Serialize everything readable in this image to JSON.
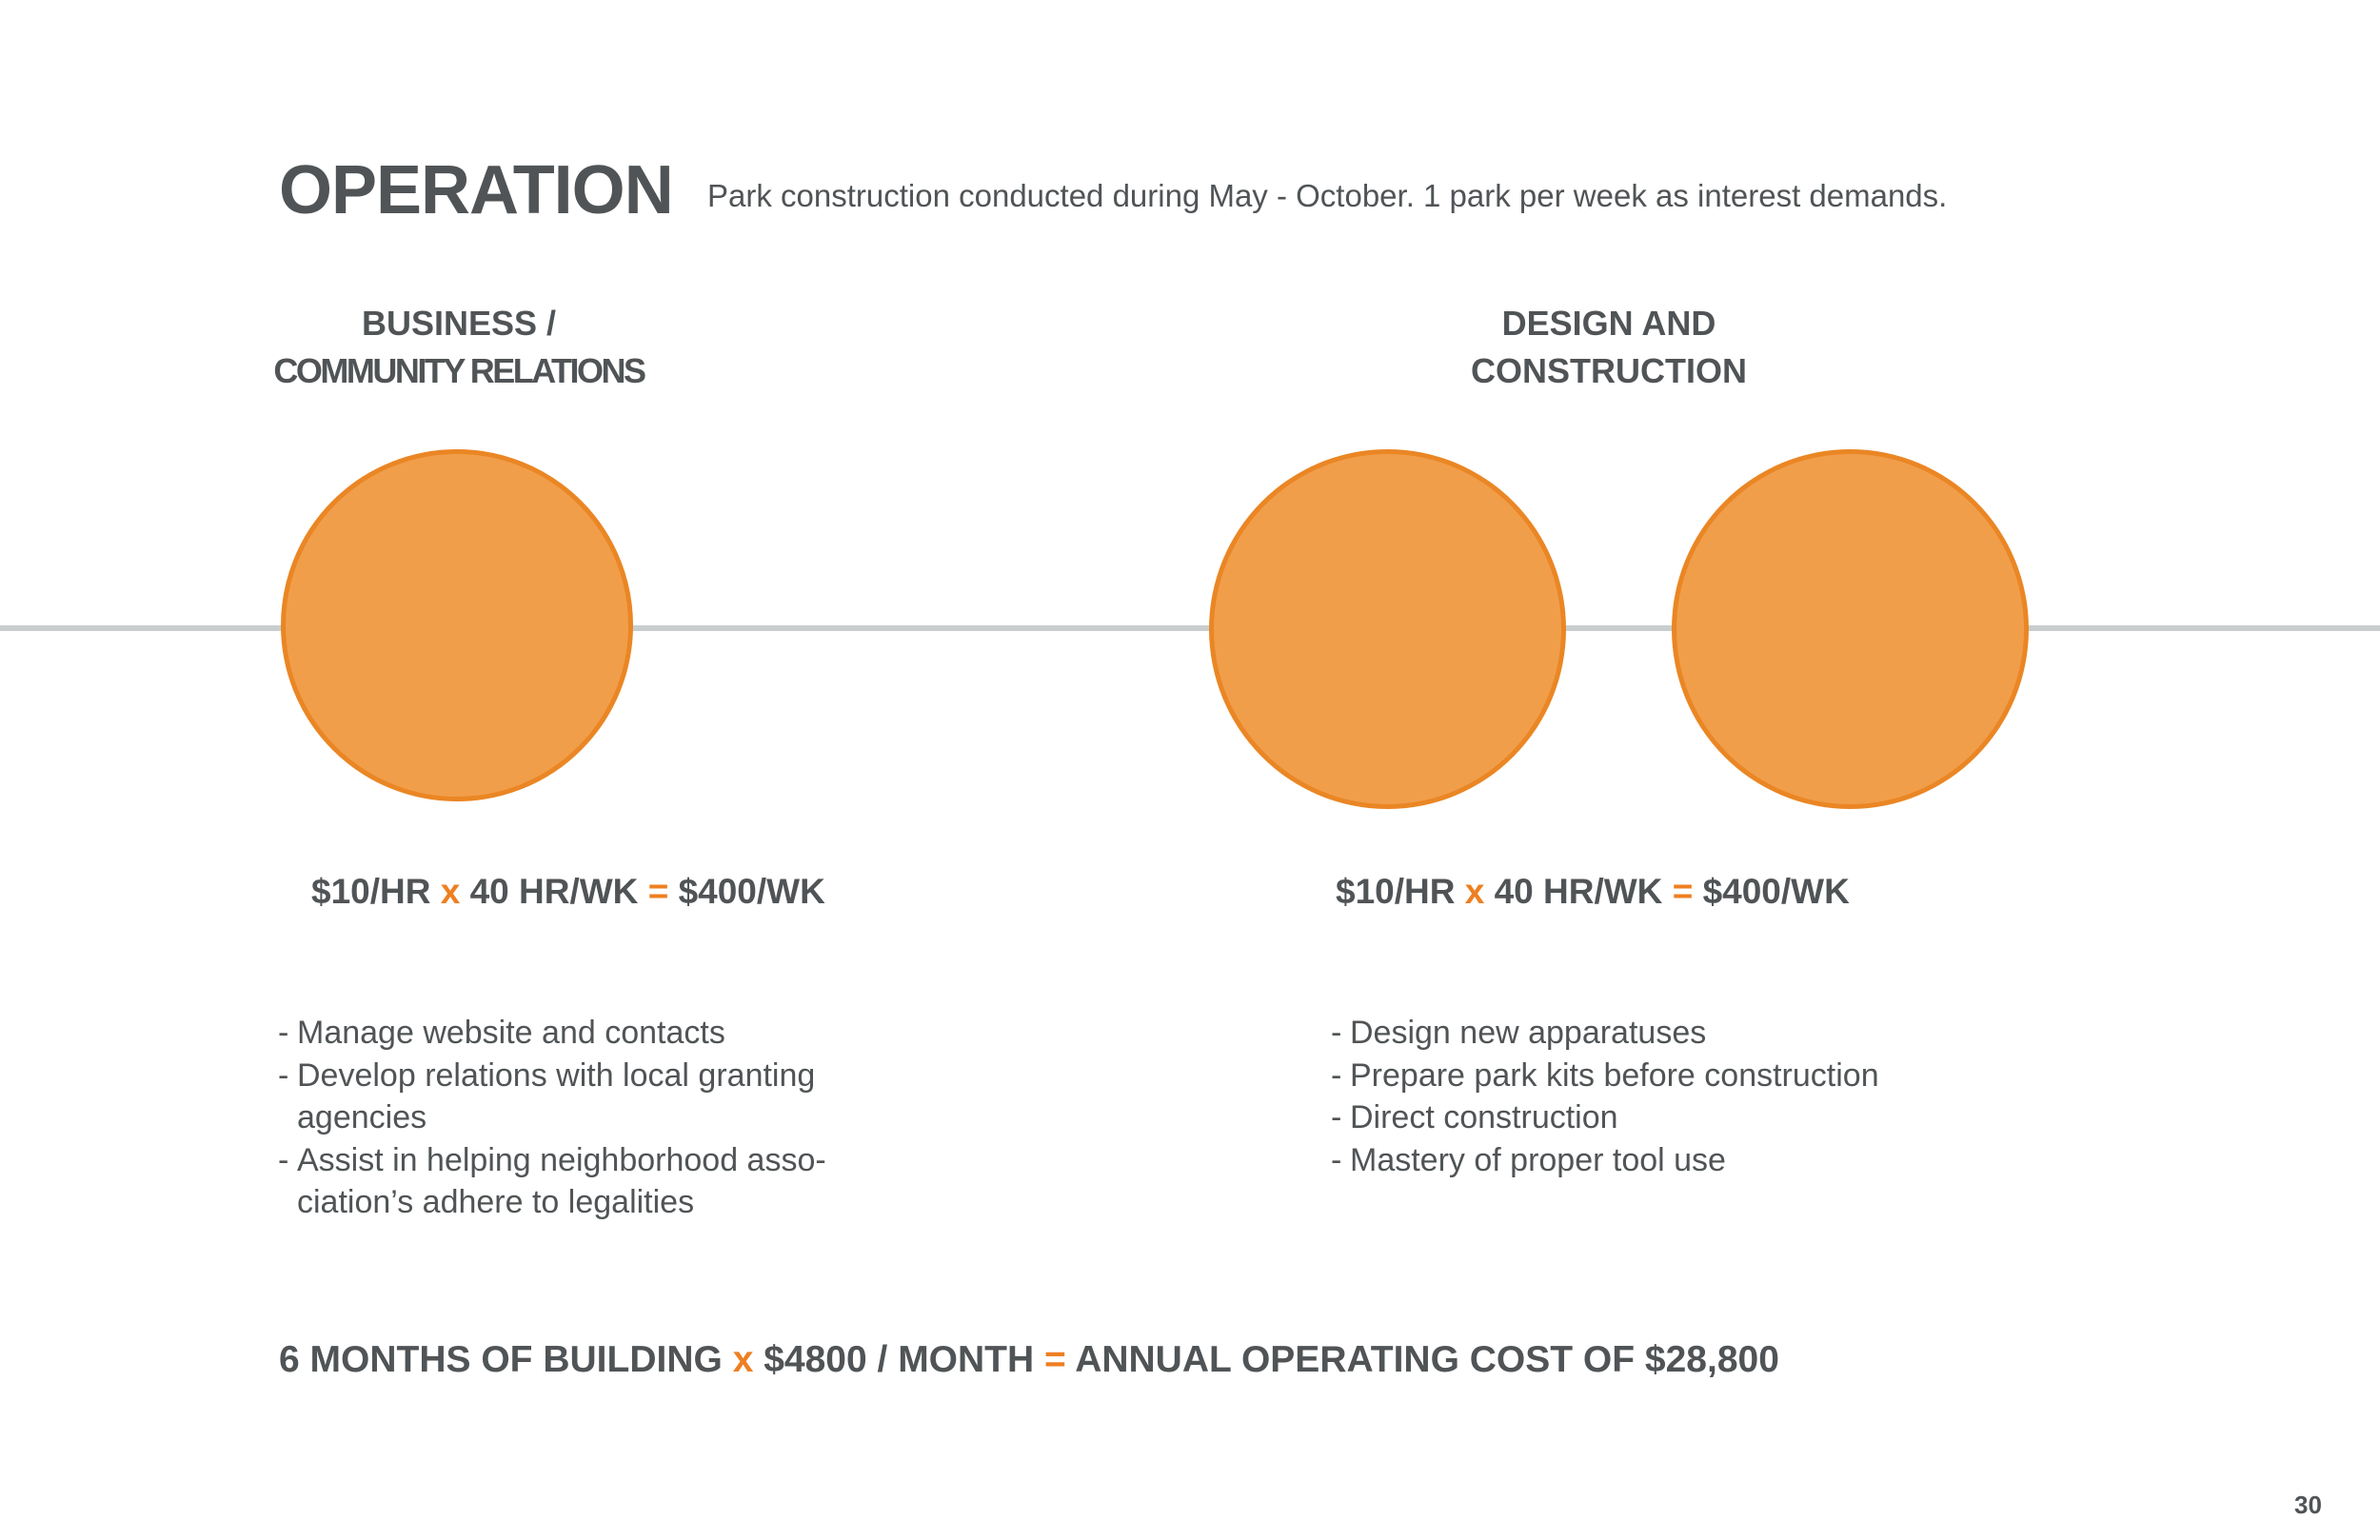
{
  "header": {
    "title": "OPERATION",
    "subtitle": "Park construction conducted during May - October. 1 park per week as interest demands."
  },
  "sections": [
    {
      "heading_line1": "BUSINESS /",
      "heading_line2": "COMMUNITY RELATIONS",
      "formula": {
        "rate": "$10/HR",
        "times": "x",
        "hours": "40 HR/WK",
        "equals": "=",
        "result": "$400/WK"
      },
      "items": [
        "Manage website and contacts",
        "Develop relations with local granting agencies",
        "Assist in helping neighborhood asso-ciation’s adhere to legalities"
      ]
    },
    {
      "heading_line1": "DESIGN AND",
      "heading_line2": "CONSTRUCTION",
      "formula": {
        "rate": "$10/HR",
        "times": "x",
        "hours": "40 HR/WK",
        "equals": "=",
        "result": "$400/WK"
      },
      "items": [
        "Design new apparatuses",
        "Prepare park kits before construction",
        "Direct construction",
        "Mastery of proper tool use"
      ]
    }
  ],
  "total": {
    "part1": "6 MONTHS OF BUILDING",
    "times": "x",
    "part2": "$4800 / MONTH",
    "equals": "=",
    "part3": "ANNUAL OPERATING COST OF $28,800"
  },
  "page_number": "30",
  "colors": {
    "accent": "#ee7f22",
    "circle_fill": "#f19e4b",
    "circle_stroke": "#ea8624",
    "text": "#505456",
    "timeline": "#c8cecd"
  }
}
